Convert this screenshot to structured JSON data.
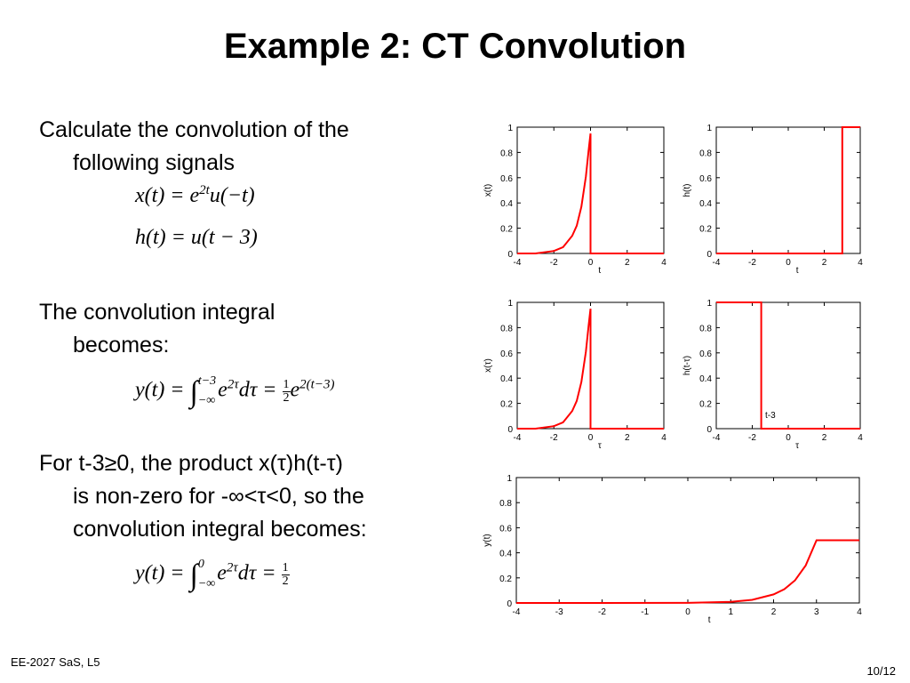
{
  "slide": {
    "title": "Example 2: CT Convolution",
    "para1": {
      "line1": "Calculate the convolution of the",
      "line2": "following signals"
    },
    "eq1": {
      "lhs": "x(t) = e",
      "exp": "2t",
      "rhs": "u(−t)"
    },
    "eq2": {
      "text": "h(t) = u(t − 3)"
    },
    "para2": {
      "line1": "The convolution integral",
      "line2": "becomes:"
    },
    "eq3": {
      "lhs": "y(t) = ",
      "upper": "t−3",
      "lower": "−∞",
      "body": "e",
      "exp": "2τ",
      "dtau": "dτ = ",
      "num": "1",
      "den": "2",
      "tail": "e",
      "tailexp": "2(t−3)"
    },
    "para3": {
      "line1": "For t-3≥0, the product x(τ)h(t-τ)",
      "line2": "is non-zero for -∞<τ<0, so the",
      "line3": "convolution integral becomes:"
    },
    "eq4": {
      "lhs": "y(t) = ",
      "upper": "0",
      "lower": "−∞",
      "body": "e",
      "exp": "2τ",
      "dtau": "dτ = ",
      "num": "1",
      "den": "2"
    },
    "footer_left": "EE-2027 SaS, L5",
    "footer_right": "10/12"
  },
  "colors": {
    "curve": "#ff0000",
    "axis": "#000000"
  },
  "chart_data": [
    {
      "type": "line",
      "ylabel": "x(t)",
      "xlabel": "t",
      "xlim": [
        -4,
        4
      ],
      "ylim": [
        0,
        1
      ],
      "xticks": [
        "-4",
        "-2",
        "0",
        "2",
        "4"
      ],
      "yticks": [
        "0",
        "0.2",
        "0.4",
        "0.6",
        "0.8",
        "1"
      ],
      "series": [
        {
          "x": [
            -4,
            -3,
            -2,
            -1.5,
            -1,
            -0.75,
            -0.5,
            -0.25,
            -0.1,
            0,
            0,
            4
          ],
          "y": [
            0,
            0,
            0.02,
            0.05,
            0.14,
            0.22,
            0.37,
            0.61,
            0.82,
            0.95,
            0,
            0
          ]
        }
      ]
    },
    {
      "type": "line",
      "ylabel": "h(t)",
      "xlabel": "t",
      "xlim": [
        -4,
        4
      ],
      "ylim": [
        0,
        1
      ],
      "xticks": [
        "-4",
        "-2",
        "0",
        "2",
        "4"
      ],
      "yticks": [
        "0",
        "0.2",
        "0.4",
        "0.6",
        "0.8",
        "1"
      ],
      "series": [
        {
          "x": [
            -4,
            3,
            3,
            4
          ],
          "y": [
            0,
            0,
            1,
            1
          ]
        }
      ]
    },
    {
      "type": "line",
      "ylabel": "x(τ)",
      "xlabel": "τ",
      "xlim": [
        -4,
        4
      ],
      "ylim": [
        0,
        1
      ],
      "xticks": [
        "-4",
        "-2",
        "0",
        "2",
        "4"
      ],
      "yticks": [
        "0",
        "0.2",
        "0.4",
        "0.6",
        "0.8",
        "1"
      ],
      "series": [
        {
          "x": [
            -4,
            -3,
            -2,
            -1.5,
            -1,
            -0.75,
            -0.5,
            -0.25,
            -0.1,
            0,
            0,
            4
          ],
          "y": [
            0,
            0,
            0.02,
            0.05,
            0.14,
            0.22,
            0.37,
            0.61,
            0.82,
            0.95,
            0,
            0
          ]
        }
      ]
    },
    {
      "type": "line",
      "ylabel": "h(t-τ)",
      "xlabel": "τ",
      "xlim": [
        -4,
        4
      ],
      "ylim": [
        0,
        1
      ],
      "xticks": [
        "-4",
        "-2",
        "0",
        "2",
        "4"
      ],
      "yticks": [
        "0",
        "0.2",
        "0.4",
        "0.6",
        "0.8",
        "1"
      ],
      "annotation": "t-3",
      "series": [
        {
          "x": [
            -4,
            -1.5,
            -1.5,
            4
          ],
          "y": [
            1,
            1,
            0,
            0
          ]
        }
      ]
    },
    {
      "type": "line",
      "ylabel": "y(t)",
      "xlabel": "t",
      "xlim": [
        -4,
        4
      ],
      "ylim": [
        0,
        1
      ],
      "xticks": [
        "-4",
        "-3",
        "-2",
        "-1",
        "0",
        "1",
        "2",
        "3",
        "4"
      ],
      "yticks": [
        "0",
        "0.2",
        "0.4",
        "0.6",
        "0.8",
        "1"
      ],
      "series": [
        {
          "x": [
            -4,
            -2,
            0,
            1,
            1.5,
            2,
            2.25,
            2.5,
            2.75,
            3,
            4
          ],
          "y": [
            0,
            0,
            0.001,
            0.009,
            0.025,
            0.068,
            0.11,
            0.18,
            0.3,
            0.5,
            0.5
          ]
        }
      ]
    }
  ]
}
